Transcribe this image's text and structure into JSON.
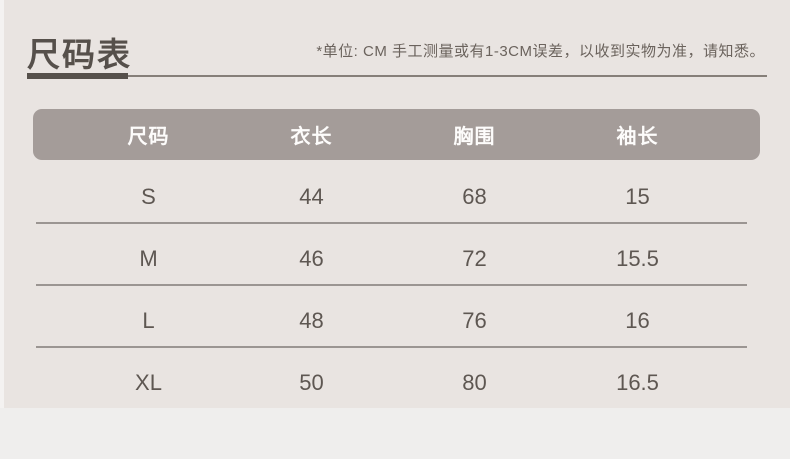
{
  "page": {
    "title": "尺码表",
    "unit_note": "*单位: CM  手工测量或有1-3CM误差，以收到实物为准，请知悉。"
  },
  "table": {
    "headers": [
      "尺码",
      "衣长",
      "胸围",
      "袖长"
    ],
    "rows": [
      [
        "S",
        "44",
        "68",
        "15"
      ],
      [
        "M",
        "46",
        "72",
        "15.5"
      ],
      [
        "L",
        "48",
        "76",
        "16"
      ],
      [
        "XL",
        "50",
        "80",
        "16.5"
      ]
    ]
  },
  "colors": {
    "panel_background": "#e9e4e1",
    "header_bar": "#a49c99",
    "title_text": "#56504b",
    "data_text": "#5e5752",
    "divider": "#9b9592"
  }
}
